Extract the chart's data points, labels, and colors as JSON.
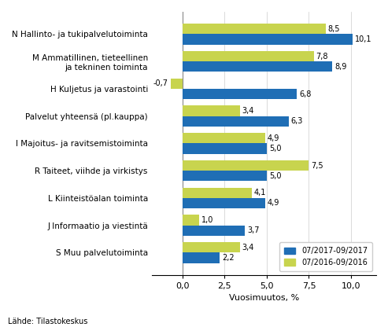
{
  "categories": [
    "N Hallinto- ja tukipalvelutoiminta",
    "M Ammatillinen, tieteellinen\nja tekninen toiminta",
    "H Kuljetus ja varastointi",
    "Palvelut yhteensä (pl.kauppa)",
    "I Majoitus- ja ravitsemistoiminta",
    "R Taiteet, viihde ja virkistys",
    "L Kiinteistöalan toiminta",
    "J Informaatio ja viestintä",
    "S Muu palvelutoiminta"
  ],
  "values_2017": [
    10.1,
    8.9,
    6.8,
    6.3,
    5.0,
    5.0,
    4.9,
    3.7,
    2.2
  ],
  "values_2016": [
    8.5,
    7.8,
    -0.7,
    3.4,
    4.9,
    7.5,
    4.1,
    1.0,
    3.4
  ],
  "color_2017": "#1F6EB5",
  "color_2016": "#C8D44E",
  "xlabel": "Vuosimuutos, %",
  "legend_2017": "07/2017-09/2017",
  "legend_2016": "07/2016-09/2016",
  "xlim": [
    -1.8,
    11.5
  ],
  "xticks": [
    0.0,
    2.5,
    5.0,
    7.5,
    10.0
  ],
  "xtick_labels": [
    "0,0",
    "2,5",
    "5,0",
    "7,5",
    "10,0"
  ],
  "source": "Lähde: Tilastokeskus",
  "bar_height": 0.38
}
